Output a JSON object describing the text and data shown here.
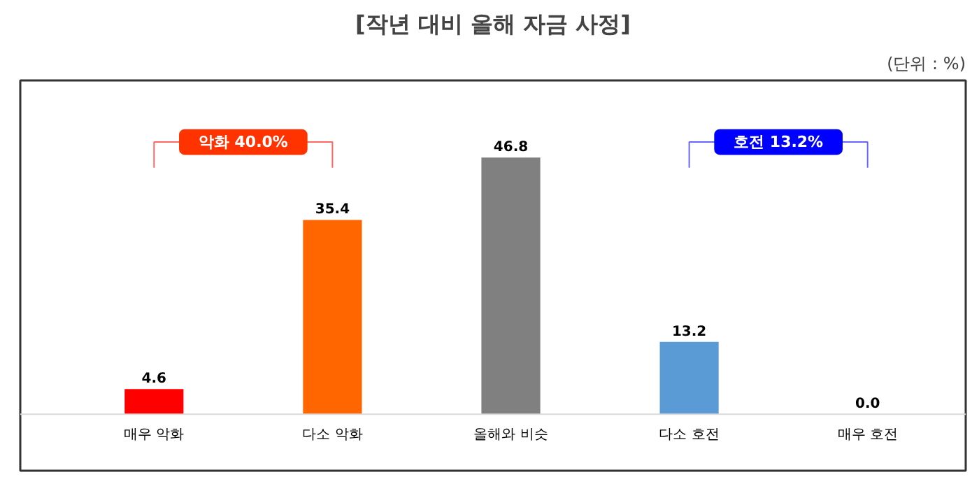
{
  "chart_data": {
    "type": "bar",
    "title": "[작년 대비 올해 자금 사정]",
    "categories": [
      "매우 악화",
      "다소 악화",
      "올해와 비슷",
      "다소 호전",
      "매우 호전"
    ],
    "values": [
      4.6,
      35.4,
      46.8,
      13.2,
      0.0
    ],
    "colors": [
      "#ff0000",
      "#ff6600",
      "#808080",
      "#5b9bd5",
      "#ff0000"
    ],
    "value_labels": [
      "4.6",
      "35.4",
      "46.8",
      "13.2",
      "0.0"
    ],
    "grid": false,
    "annotations": [
      "(단위 : %)",
      "악화 40.0%",
      "호전 13.2%"
    ]
  }
}
